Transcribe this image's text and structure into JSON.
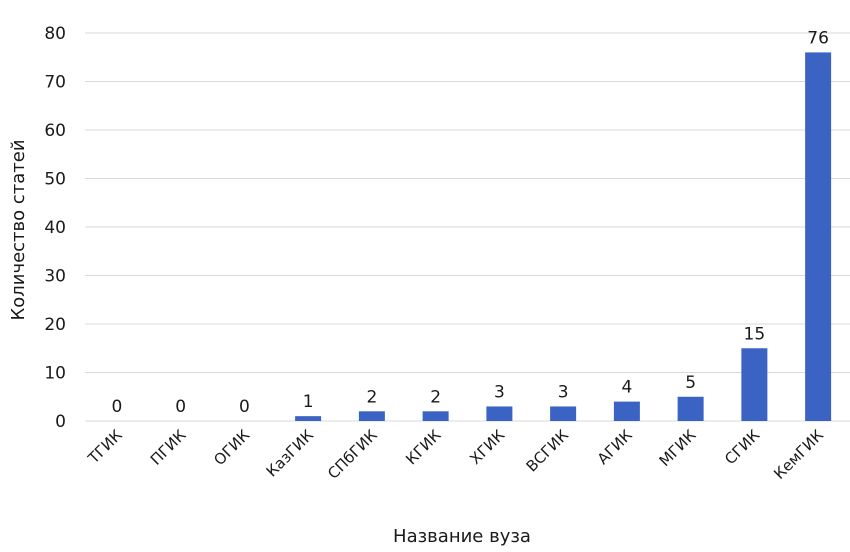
{
  "chart_data": {
    "type": "bar",
    "title": "",
    "xlabel": "Название вуза",
    "ylabel": "Количество статей",
    "ylim": [
      0,
      80
    ],
    "yticks": [
      0,
      10,
      20,
      30,
      40,
      50,
      60,
      70,
      80
    ],
    "grid": true,
    "categories": [
      "ТГИК",
      "ПГИК",
      "ОГИК",
      "КазГИК",
      "СПбГИК",
      "КГИК",
      "ХГИК",
      "ВСГИК",
      "АГИК",
      "МГИК",
      "СГИК",
      "КемГИК"
    ],
    "values": [
      0,
      0,
      0,
      1,
      2,
      2,
      3,
      3,
      4,
      5,
      15,
      76
    ],
    "bar_color": "#3a63c4"
  }
}
